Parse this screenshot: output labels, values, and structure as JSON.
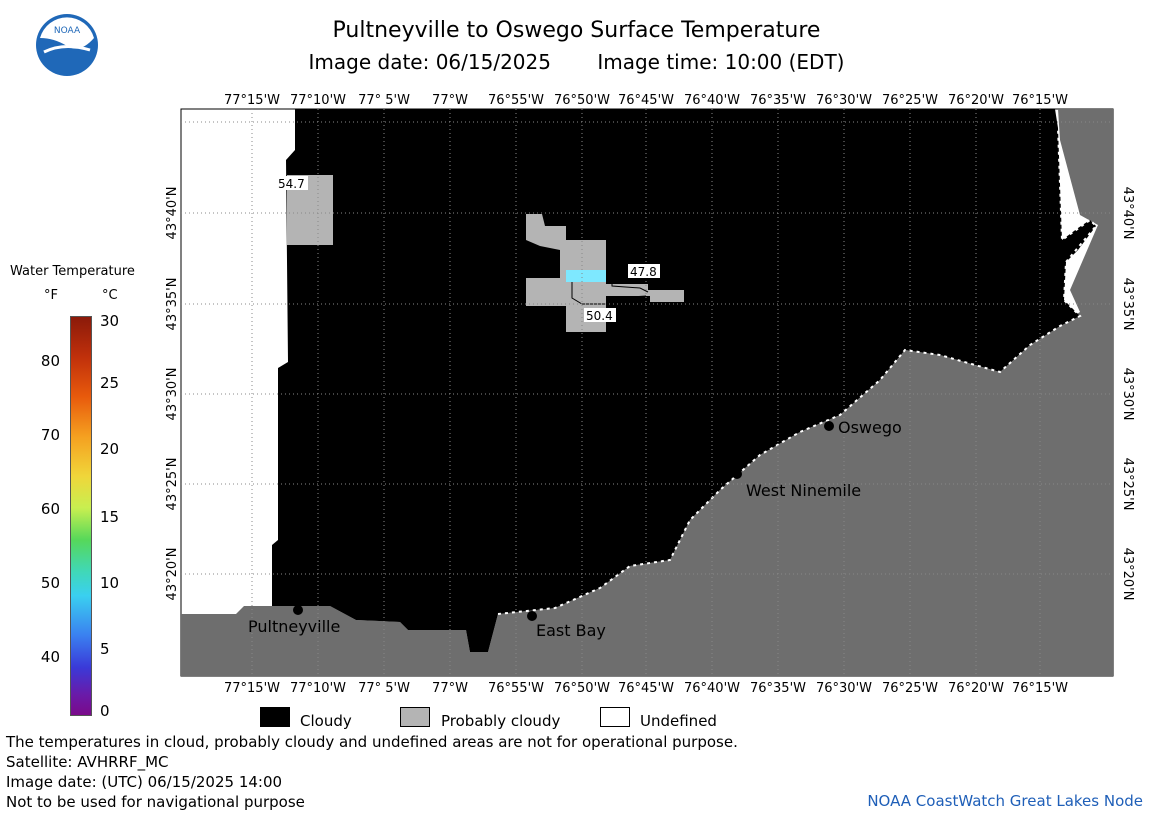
{
  "title": "Pultneyville to Oswego Surface Temperature",
  "image_date": "Image date: 06/15/2025",
  "image_time": "Image time: 10:00 (EDT)",
  "logo": {
    "text": "NOAA",
    "colors": {
      "outer": "#1f68b8",
      "inner": "#ffffff",
      "bird": "#1f68b8"
    }
  },
  "map": {
    "longitude_ticks": [
      "77°15'W",
      "77°10'W",
      "77° 5'W",
      "77°W",
      "76°55'W",
      "76°50'W",
      "76°45'W",
      "76°40'W",
      "76°35'W",
      "76°30'W",
      "76°25'W",
      "76°20'W",
      "76°15'W"
    ],
    "latitude_ticks": [
      "43°40'N",
      "43°35'N",
      "43°30'N",
      "43°25'N",
      "43°20'N"
    ],
    "places": [
      {
        "name": "Pultneyville"
      },
      {
        "name": "East Bay"
      },
      {
        "name": "West Ninemile"
      },
      {
        "name": "Oswego"
      }
    ],
    "temperature_labels": [
      "54.7",
      "47.8",
      "50.4"
    ],
    "colors": {
      "cloudy": "#000000",
      "probably_cloudy": "#b4b4b4",
      "undefined": "#ffffff",
      "land": "#6e6e6e",
      "water_cool": "#7ee8ff"
    }
  },
  "legend": {
    "title": "Water Temperature",
    "unit_f": "°F",
    "unit_c": "°C",
    "fahrenheit_ticks": [
      "80",
      "70",
      "60",
      "50",
      "40"
    ],
    "celsius_ticks": [
      "30",
      "25",
      "20",
      "15",
      "10",
      "5",
      "0"
    ]
  },
  "key": {
    "cloudy": "Cloudy",
    "probably_cloudy": "Probably cloudy",
    "undefined": "Undefined"
  },
  "footer": {
    "disclaimer": "The temperatures in cloud, probably cloudy and undefined areas are not for operational purpose.",
    "satellite": "Satellite: AVHRRF_MC",
    "utc_date": "Image date: (UTC) 06/15/2025  14:00",
    "navigation": "Not to be used for navigational purpose",
    "credit": "NOAA CoastWatch Great Lakes Node"
  }
}
